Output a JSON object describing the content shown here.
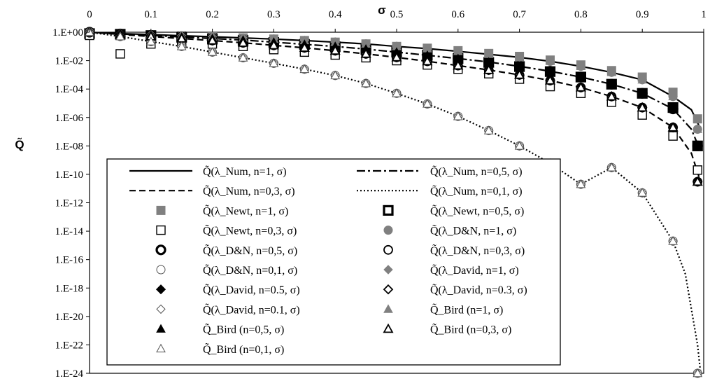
{
  "chart_data": {
    "type": "scatter",
    "title": "",
    "xlabel": "σ",
    "ylabel": "Q̃",
    "x_axis_position": "top",
    "xlim": [
      0,
      1
    ],
    "y_scale": "log10",
    "ylim": [
      1e-24,
      1
    ],
    "x_ticks": [
      "0",
      "0.1",
      "0.2",
      "0.3",
      "0.4",
      "0.5",
      "0.6",
      "0.7",
      "0.8",
      "0.9",
      "1"
    ],
    "y_ticks": [
      "1.E+00",
      "1.E-02",
      "1.E-04",
      "1.E-06",
      "1.E-08",
      "1.E-10",
      "1.E-12",
      "1.E-14",
      "1.E-16",
      "1.E-18",
      "1.E-20",
      "1.E-22",
      "1.E-24"
    ],
    "grid": false,
    "legend_position": "bottom-left",
    "lines": [
      {
        "label": "Q̃(λ_Num, n=1, σ)",
        "dash": "solid",
        "x": [
          0,
          0.05,
          0.1,
          0.15,
          0.2,
          0.25,
          0.3,
          0.35,
          0.4,
          0.45,
          0.5,
          0.55,
          0.6,
          0.65,
          0.7,
          0.75,
          0.8,
          0.85,
          0.9,
          0.95,
          0.98,
          0.995
        ],
        "y": [
          1,
          0.8,
          0.68,
          0.57,
          0.48,
          0.4,
          0.33,
          0.26,
          0.2,
          0.15,
          0.1,
          0.07,
          0.045,
          0.028,
          0.017,
          0.009,
          0.004,
          0.0015,
          0.00045,
          3e-05,
          3.5e-06,
          1.5e-07
        ]
      },
      {
        "label": "Q̃(λ_Num, n=0,5, σ)",
        "dash": "dashdot",
        "x": [
          0,
          0.05,
          0.1,
          0.15,
          0.2,
          0.25,
          0.3,
          0.35,
          0.4,
          0.45,
          0.5,
          0.55,
          0.6,
          0.65,
          0.7,
          0.75,
          0.8,
          0.85,
          0.9,
          0.95,
          0.98,
          0.995
        ],
        "y": [
          1,
          0.75,
          0.6,
          0.46,
          0.36,
          0.28,
          0.2,
          0.14,
          0.1,
          0.065,
          0.04,
          0.024,
          0.014,
          0.008,
          0.004,
          0.0018,
          0.0007,
          0.00022,
          5e-05,
          4e-06,
          1.5e-07,
          4e-09
        ]
      },
      {
        "label": "Q̃(λ_Num, n=0,3, σ)",
        "dash": "dash",
        "x": [
          0,
          0.05,
          0.1,
          0.15,
          0.2,
          0.25,
          0.3,
          0.35,
          0.4,
          0.45,
          0.5,
          0.55,
          0.6,
          0.65,
          0.7,
          0.75,
          0.8,
          0.85,
          0.9,
          0.95,
          0.98,
          0.995
        ],
        "y": [
          1,
          0.7,
          0.5,
          0.36,
          0.26,
          0.18,
          0.12,
          0.08,
          0.05,
          0.03,
          0.017,
          0.009,
          0.0045,
          0.0022,
          0.001,
          0.0004,
          0.00013,
          3e-05,
          5e-06,
          2e-07,
          3e-09,
          3e-11
        ]
      },
      {
        "label": "Q̃(λ_Num, n=0,1, σ)",
        "dash": "dot",
        "x": [
          0,
          0.05,
          0.1,
          0.15,
          0.2,
          0.25,
          0.3,
          0.35,
          0.4,
          0.45,
          0.5,
          0.55,
          0.6,
          0.65,
          0.7,
          0.75,
          0.8,
          0.85,
          0.9,
          0.95,
          0.97,
          0.99,
          0.995
        ],
        "y": [
          1,
          0.5,
          0.22,
          0.1,
          0.04,
          0.016,
          0.0065,
          0.0025,
          0.0009,
          0.00025,
          5e-05,
          9e-06,
          1.2e-06,
          1.2e-07,
          1e-08,
          6e-10,
          2e-11,
          3e-10,
          5e-12,
          2e-15,
          1e-17,
          1e-22,
          1e-24
        ]
      }
    ],
    "markers": [
      {
        "label": "Q̃(λ_Newt, n=1, σ)",
        "marker": "square-filled-gray",
        "x": [
          0,
          0.05,
          0.1,
          0.15,
          0.2,
          0.25,
          0.3,
          0.35,
          0.4,
          0.45,
          0.5,
          0.55,
          0.6,
          0.65,
          0.7,
          0.75,
          0.8,
          0.85,
          0.9,
          0.95,
          0.99
        ],
        "y": [
          0.8,
          0.78,
          0.65,
          0.55,
          0.48,
          0.4,
          0.33,
          0.26,
          0.2,
          0.15,
          0.1,
          0.075,
          0.05,
          0.032,
          0.02,
          0.011,
          0.005,
          0.002,
          0.0007,
          6e-05,
          8e-07
        ]
      },
      {
        "label": "Q̃(λ_Newt, n=0,5, σ)",
        "marker": "square-bold",
        "x": [
          0,
          0.05,
          0.1,
          0.15,
          0.2,
          0.25,
          0.3,
          0.35,
          0.4,
          0.45,
          0.5,
          0.55,
          0.6,
          0.65,
          0.7,
          0.75,
          0.8,
          0.85,
          0.9,
          0.95,
          0.99
        ],
        "y": [
          0.8,
          0.72,
          0.58,
          0.45,
          0.35,
          0.26,
          0.19,
          0.14,
          0.095,
          0.062,
          0.04,
          0.024,
          0.014,
          0.0075,
          0.0038,
          0.0017,
          0.0007,
          0.00022,
          5e-05,
          5e-06,
          1e-08
        ]
      },
      {
        "label": "Q̃(λ_Newt, n=0,3, σ)",
        "marker": "square-open",
        "x": [
          0,
          0.05,
          0.1,
          0.15,
          0.2,
          0.25,
          0.3,
          0.35,
          0.4,
          0.45,
          0.5,
          0.55,
          0.6,
          0.65,
          0.7,
          0.75,
          0.8,
          0.85,
          0.9,
          0.95,
          0.99
        ],
        "y": [
          0.6,
          0.03,
          0.15,
          0.2,
          0.15,
          0.1,
          0.06,
          0.04,
          0.025,
          0.016,
          0.01,
          0.005,
          0.0025,
          0.0012,
          0.0005,
          0.00015,
          5e-05,
          1.2e-05,
          1.5e-06,
          5e-08,
          2e-10
        ]
      },
      {
        "label": "Q̃(λ_D&N, n=1, σ)",
        "marker": "circle-filled-gray",
        "x": [
          0,
          0.05,
          0.1,
          0.15,
          0.2,
          0.25,
          0.3,
          0.35,
          0.4,
          0.45,
          0.5,
          0.55,
          0.6,
          0.65,
          0.7,
          0.75,
          0.8,
          0.85,
          0.9,
          0.95,
          0.99
        ],
        "y": [
          1,
          0.8,
          0.68,
          0.57,
          0.48,
          0.4,
          0.33,
          0.26,
          0.2,
          0.15,
          0.1,
          0.07,
          0.045,
          0.028,
          0.017,
          0.009,
          0.004,
          0.0015,
          0.00045,
          3e-05,
          1.5e-07
        ]
      },
      {
        "label": "Q̃(λ_D&N, n=0,5, σ)",
        "marker": "circle-bold",
        "x": [
          0,
          0.05,
          0.1,
          0.15,
          0.2,
          0.25,
          0.3,
          0.35,
          0.4,
          0.45,
          0.5,
          0.55,
          0.6,
          0.65,
          0.7,
          0.75,
          0.8,
          0.85,
          0.9,
          0.95,
          0.99
        ],
        "y": [
          1,
          0.75,
          0.6,
          0.46,
          0.36,
          0.28,
          0.2,
          0.14,
          0.1,
          0.065,
          0.04,
          0.024,
          0.014,
          0.008,
          0.004,
          0.0018,
          0.0007,
          0.00022,
          5e-05,
          4e-06,
          1e-08
        ]
      },
      {
        "label": "Q̃(λ_D&N, n=0,3, σ)",
        "marker": "circle-open",
        "x": [
          0,
          0.05,
          0.1,
          0.15,
          0.2,
          0.25,
          0.3,
          0.35,
          0.4,
          0.45,
          0.5,
          0.55,
          0.6,
          0.65,
          0.7,
          0.75,
          0.8,
          0.85,
          0.9,
          0.95,
          0.99
        ],
        "y": [
          1,
          0.7,
          0.5,
          0.36,
          0.26,
          0.18,
          0.12,
          0.08,
          0.05,
          0.03,
          0.017,
          0.009,
          0.0045,
          0.0022,
          0.001,
          0.0004,
          0.00013,
          3e-05,
          5e-06,
          2e-07,
          3e-11
        ]
      },
      {
        "label": "Q̃(λ_D&N, n=0,1, σ)",
        "marker": "circle-thin",
        "x": [
          0,
          0.05,
          0.1,
          0.15,
          0.2,
          0.25,
          0.3,
          0.35,
          0.4,
          0.45,
          0.5,
          0.55,
          0.6,
          0.65,
          0.7,
          0.75,
          0.8,
          0.85,
          0.9,
          0.95,
          0.99
        ],
        "y": [
          1,
          0.5,
          0.22,
          0.1,
          0.04,
          0.016,
          0.0065,
          0.0025,
          0.0009,
          0.00025,
          5e-05,
          9e-06,
          1.2e-06,
          1.2e-07,
          1e-08,
          6e-10,
          2e-11,
          3e-10,
          5e-12,
          2e-15,
          1e-24
        ]
      },
      {
        "label": "Q̃(λ_David, n=1, σ)",
        "marker": "diamond-filled-gray",
        "x": [
          0,
          0.05,
          0.1,
          0.15,
          0.2,
          0.25,
          0.3,
          0.35,
          0.4,
          0.45,
          0.5,
          0.55,
          0.6,
          0.65,
          0.7,
          0.75,
          0.8,
          0.85,
          0.9,
          0.95,
          0.99
        ],
        "y": [
          1,
          0.8,
          0.68,
          0.57,
          0.48,
          0.4,
          0.33,
          0.26,
          0.2,
          0.15,
          0.1,
          0.07,
          0.045,
          0.028,
          0.017,
          0.009,
          0.004,
          0.0015,
          0.00045,
          3e-05,
          1.5e-07
        ]
      },
      {
        "label": "Q̃(λ_David, n=0.5, σ)",
        "marker": "diamond-bold",
        "x": [
          0,
          0.05,
          0.1,
          0.15,
          0.2,
          0.25,
          0.3,
          0.35,
          0.4,
          0.45,
          0.5,
          0.55,
          0.6,
          0.65,
          0.7,
          0.75,
          0.8,
          0.85,
          0.9,
          0.95,
          0.99
        ],
        "y": [
          1,
          0.75,
          0.6,
          0.46,
          0.36,
          0.28,
          0.2,
          0.14,
          0.1,
          0.065,
          0.04,
          0.024,
          0.014,
          0.008,
          0.004,
          0.0018,
          0.0007,
          0.00022,
          5e-05,
          4e-06,
          1e-08
        ]
      },
      {
        "label": "Q̃(λ_David, n=0.3, σ)",
        "marker": "diamond-open",
        "x": [
          0,
          0.05,
          0.1,
          0.15,
          0.2,
          0.25,
          0.3,
          0.35,
          0.4,
          0.45,
          0.5,
          0.55,
          0.6,
          0.65,
          0.7,
          0.75,
          0.8,
          0.85,
          0.9,
          0.95,
          0.99
        ],
        "y": [
          1,
          0.7,
          0.5,
          0.36,
          0.26,
          0.18,
          0.12,
          0.08,
          0.05,
          0.03,
          0.017,
          0.009,
          0.0045,
          0.0022,
          0.001,
          0.0004,
          0.00013,
          3e-05,
          5e-06,
          2e-07,
          3e-11
        ]
      },
      {
        "label": "Q̃(λ_David, n=0.1, σ)",
        "marker": "diamond-thin",
        "x": [
          0,
          0.05,
          0.1,
          0.15,
          0.2,
          0.25,
          0.3,
          0.35,
          0.4,
          0.45,
          0.5,
          0.55,
          0.6,
          0.65,
          0.7,
          0.75,
          0.8,
          0.85,
          0.9,
          0.95,
          0.99
        ],
        "y": [
          1,
          0.5,
          0.22,
          0.1,
          0.04,
          0.016,
          0.0065,
          0.0025,
          0.0009,
          0.00025,
          5e-05,
          9e-06,
          1.2e-06,
          1.2e-07,
          1e-08,
          6e-10,
          2e-11,
          3e-10,
          5e-12,
          2e-15,
          1e-24
        ]
      },
      {
        "label": "Q̃_Bird (n=1, σ)",
        "marker": "triangle-filled-gray",
        "x": [
          0,
          0.05,
          0.1,
          0.15,
          0.2,
          0.25,
          0.3,
          0.35,
          0.4,
          0.45,
          0.5,
          0.55,
          0.6,
          0.65,
          0.7,
          0.75,
          0.8,
          0.85,
          0.9,
          0.95,
          0.99
        ],
        "y": [
          1,
          0.8,
          0.68,
          0.57,
          0.48,
          0.4,
          0.33,
          0.26,
          0.2,
          0.15,
          0.1,
          0.07,
          0.045,
          0.028,
          0.017,
          0.009,
          0.004,
          0.0015,
          0.00045,
          3e-05,
          1.5e-07
        ]
      },
      {
        "label": "Q̃_Bird (n=0,5, σ)",
        "marker": "triangle-filled-black",
        "x": [
          0,
          0.05,
          0.1,
          0.15,
          0.2,
          0.25,
          0.3,
          0.35,
          0.4,
          0.45,
          0.5,
          0.55,
          0.6,
          0.65,
          0.7,
          0.75,
          0.8,
          0.85,
          0.9,
          0.95,
          0.99
        ],
        "y": [
          1,
          0.75,
          0.6,
          0.46,
          0.36,
          0.28,
          0.2,
          0.14,
          0.1,
          0.065,
          0.04,
          0.024,
          0.014,
          0.008,
          0.004,
          0.0018,
          0.0007,
          0.00022,
          5e-05,
          4e-06,
          1e-08
        ]
      },
      {
        "label": "Q̃_Bird (n=0,3, σ)",
        "marker": "triangle-open",
        "x": [
          0,
          0.05,
          0.1,
          0.15,
          0.2,
          0.25,
          0.3,
          0.35,
          0.4,
          0.45,
          0.5,
          0.55,
          0.6,
          0.65,
          0.7,
          0.75,
          0.8,
          0.85,
          0.9,
          0.95,
          0.99
        ],
        "y": [
          1,
          0.7,
          0.5,
          0.36,
          0.26,
          0.18,
          0.12,
          0.08,
          0.05,
          0.03,
          0.017,
          0.009,
          0.0045,
          0.0022,
          0.001,
          0.0004,
          0.00013,
          3e-05,
          5e-06,
          2e-07,
          3e-11
        ]
      },
      {
        "label": "Q̃_Bird (n=0,1, σ)",
        "marker": "triangle-thin",
        "x": [
          0,
          0.05,
          0.1,
          0.15,
          0.2,
          0.25,
          0.3,
          0.35,
          0.4,
          0.45,
          0.5,
          0.55,
          0.6,
          0.65,
          0.7,
          0.75,
          0.8,
          0.85,
          0.9,
          0.95,
          0.99
        ],
        "y": [
          1,
          0.5,
          0.22,
          0.1,
          0.04,
          0.016,
          0.0065,
          0.0025,
          0.0009,
          0.00025,
          5e-05,
          9e-06,
          1.2e-06,
          1.2e-07,
          1e-08,
          6e-10,
          2e-11,
          3e-10,
          5e-12,
          2e-15,
          1e-24
        ]
      }
    ],
    "legend": [
      [
        "Q̃(λ_Num, n=1, σ)",
        "Q̃(λ_Num, n=0,5, σ)"
      ],
      [
        "Q̃(λ_Num, n=0,3, σ)",
        "Q̃(λ_Num, n=0,1, σ)"
      ],
      [
        "Q̃(λ_Newt, n=1, σ)",
        "Q̃(λ_Newt, n=0,5, σ)"
      ],
      [
        "Q̃(λ_Newt, n=0,3, σ)",
        "Q̃(λ_D&N, n=1, σ)"
      ],
      [
        "Q̃(λ_D&N, n=0,5, σ)",
        "Q̃(λ_D&N, n=0,3, σ)"
      ],
      [
        "Q̃(λ_D&N, n=0,1, σ)",
        "Q̃(λ_David, n=1, σ)"
      ],
      [
        "Q̃(λ_David, n=0.5, σ)",
        "Q̃(λ_David, n=0.3, σ)"
      ],
      [
        "Q̃(λ_David, n=0.1, σ)",
        "Q̃_Bird (n=1, σ)"
      ],
      [
        "Q̃_Bird (n=0,5, σ)",
        "Q̃_Bird (n=0,3, σ)"
      ],
      [
        "Q̃_Bird (n=0,1, σ)",
        ""
      ]
    ],
    "colors": {
      "black": "#000000",
      "gray": "#808080",
      "light_gray": "#a0a0a0"
    }
  }
}
